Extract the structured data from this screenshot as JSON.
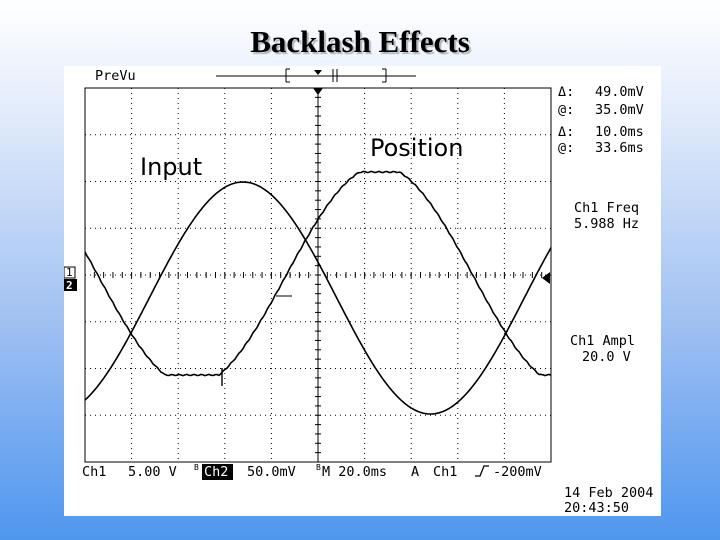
{
  "slide": {
    "title": "Backlash Effects"
  },
  "scope": {
    "mode": "PreVu",
    "annotations": {
      "input": "Input",
      "position": "Position"
    },
    "channel_markers": {
      "ch1": "1",
      "ch2": "2"
    },
    "cursor_readout": {
      "delta_v_label": "Δ:",
      "delta_v": "49.0mV",
      "at_v_label": "@:",
      "at_v": "35.0mV",
      "delta_t_label": "Δ:",
      "delta_t": "10.0ms",
      "at_t_label": "@:",
      "at_t": "33.6ms"
    },
    "measurements": [
      {
        "label": "Ch1 Freq",
        "value": "5.988 Hz"
      },
      {
        "label": "Ch1 Ampl",
        "value": "20.0 V"
      }
    ],
    "status_bar": {
      "ch1": "Ch1",
      "ch1_scale": "5.00 V",
      "ch2": "Ch2",
      "ch2_scale": "50.0mV",
      "timebase": "M 20.0ms",
      "trigger_mode": "A",
      "trigger_source": "Ch1",
      "trigger_slope": "rising",
      "trigger_level": "-200mV"
    },
    "timestamp": {
      "date": "14 Feb 2004",
      "time": "20:43:50"
    },
    "colors": {
      "trace": "#000000",
      "grid": "#000000",
      "background": "#ffffff"
    }
  }
}
